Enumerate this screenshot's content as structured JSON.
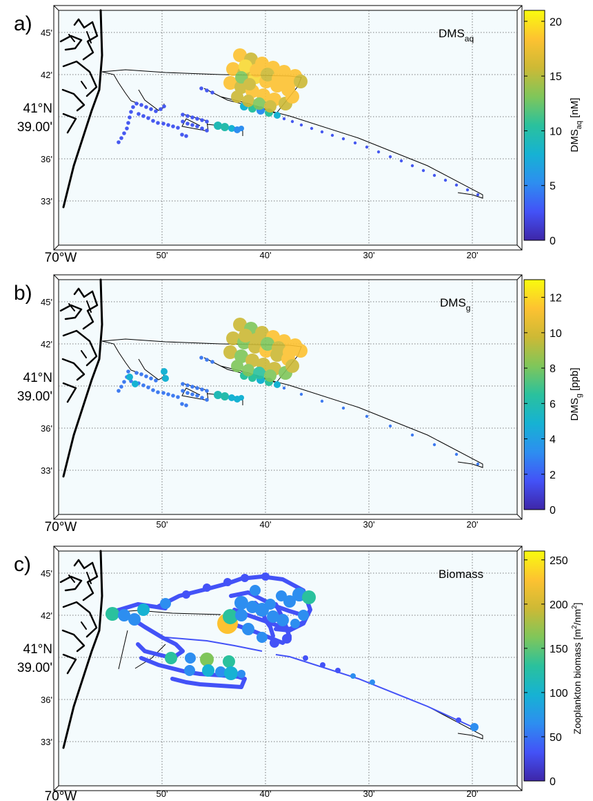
{
  "figure": {
    "x_ticks": [
      "70°W",
      "50'",
      "40'",
      "30'",
      "20'"
    ],
    "y_ticks": [
      "45'",
      "42'",
      "41°N",
      "39.00'",
      "36'",
      "33'"
    ],
    "colors": {
      "ocean": "#f4fbfd",
      "coast": "#000000",
      "grid": "#555555",
      "colormap": [
        "#3e26a8",
        "#4352f7",
        "#2d8ef0",
        "#16b2d3",
        "#2ac19d",
        "#7fc65a",
        "#cdb935",
        "#fdc231",
        "#f9fb0e"
      ]
    }
  },
  "panels": [
    {
      "letter": "a)",
      "label_main": "DMS",
      "label_sub": "aq",
      "cbar": {
        "ticks": [
          "0",
          "5",
          "10",
          "15",
          "20"
        ],
        "min": 0,
        "max": 21,
        "ticks_values": [
          0,
          5,
          10,
          15,
          20
        ],
        "title_main": "DMS",
        "title_sub": "aq",
        "title_rest": " [nM]"
      }
    },
    {
      "letter": "b)",
      "label_main": "DMS",
      "label_sub": "g",
      "cbar": {
        "ticks": [
          "0",
          "2",
          "4",
          "6",
          "8",
          "10",
          "12"
        ],
        "min": 0,
        "max": 13,
        "ticks_values": [
          0,
          2,
          4,
          6,
          8,
          10,
          12
        ],
        "title_main": "DMS",
        "title_sub": "g",
        "title_rest": "  [ppb]"
      }
    },
    {
      "letter": "c)",
      "label_main": "Biomass",
      "label_sub": "",
      "cbar": {
        "ticks": [
          "0",
          "50",
          "100",
          "150",
          "200",
          "250"
        ],
        "min": 0,
        "max": 260,
        "ticks_values": [
          0,
          50,
          100,
          150,
          200,
          250
        ],
        "title_main": "Zooplankton biomass [m",
        "title_sup1": "2",
        "title_mid": "/nm",
        "title_sup2": "2",
        "title_rest": "]"
      }
    }
  ]
}
